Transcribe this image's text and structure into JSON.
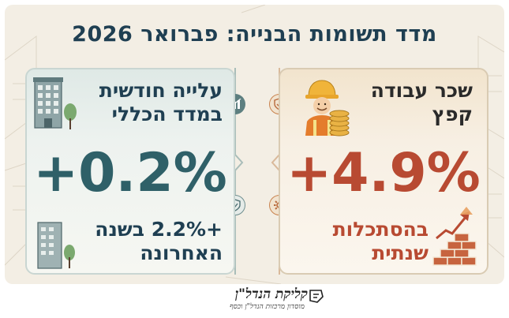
{
  "title": "מדד תשומות הבנייה: פברואר 2026",
  "cards": {
    "right": {
      "heading_line1": "שכר עבודה",
      "heading_line2": "קפץ",
      "value": "+4.9%",
      "footer_line1": "בהסתכלות",
      "footer_line2": "שנתית",
      "accent_color": "#b84a32",
      "icons": [
        "worker-icon",
        "coins-icon",
        "brick-wall-icon",
        "rising-arrow-icon",
        "shield-icon",
        "gear-icon"
      ]
    },
    "left": {
      "heading_line1": "עלייה חודשית",
      "heading_line2": "במדד הכללי",
      "value": "+0.2%",
      "footer_line1": "+2.2% בשנה",
      "footer_line2": "האחרונה",
      "accent_color": "#2f6068",
      "icons": [
        "office-building-icon",
        "tree-icon",
        "growth-chart-icon",
        "shield-check-icon"
      ]
    }
  },
  "logo": {
    "name": "קליקת הנדל\"ן",
    "tagline": "מוסדון מרכזות הנדל\"ן וכסף"
  }
}
